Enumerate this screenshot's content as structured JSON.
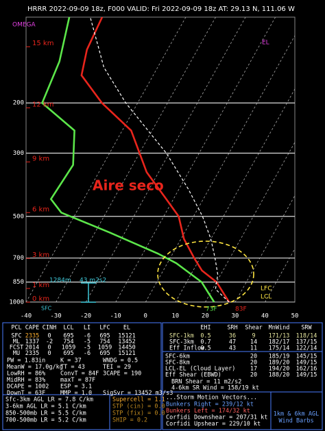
{
  "header": "HRRR 2022-09-09 18z, F000  VALID: Fri 2022-09-09 18z  AT: 29.13 N, 111.06 W",
  "chart_data": {
    "type": "skewt",
    "log_y": true,
    "ylim": [
      1000,
      100
    ],
    "yticks": [
      1000,
      850,
      700,
      500,
      300,
      200
    ],
    "y2ticks": [
      {
        "value": 127,
        "label": "15 km"
      },
      {
        "value": 208,
        "label": "12 km"
      },
      {
        "value": 322,
        "label": "9 km"
      },
      {
        "value": 485,
        "label": "6 km"
      },
      {
        "value": 702,
        "label": "3 km"
      },
      {
        "value": 895,
        "label": "1 km"
      },
      {
        "value": 1000,
        "label": "0 km"
      }
    ],
    "xlim": [
      -40,
      50
    ],
    "xticks": [
      -40,
      -30,
      -20,
      -10,
      0,
      10,
      20,
      30,
      40,
      50
    ],
    "grid": true,
    "series": [
      {
        "color": "#e8251c",
        "pressure": [
          1000,
          850,
          775,
          700,
          600,
          500,
          430,
          350,
          250,
          200,
          160,
          130,
          100
        ],
        "values": [
          28,
          20,
          13,
          8,
          1,
          -5,
          -13,
          -24,
          -37,
          -52,
          -64,
          -67,
          -68
        ]
      },
      {
        "color": "#5ce64a",
        "pressure": [
          1000,
          850,
          730,
          675,
          570,
          485,
          435,
          330,
          250,
          200,
          143,
          100
        ],
        "values": [
          23,
          15,
          3,
          -5,
          -25,
          -45,
          -51,
          -50,
          -56,
          -72,
          -74,
          -79
        ]
      },
      {
        "color": "#ffffff",
        "dashed": true,
        "pressure": [
          1000,
          900,
          800,
          700,
          600,
          500,
          400,
          300,
          200,
          150,
          100
        ],
        "values": [
          28,
          21,
          19,
          15,
          10,
          3,
          -7,
          -21,
          -44,
          -58,
          -72
        ]
      }
    ],
    "annotations": [
      "OMEGA",
      "Aire seco",
      "EL",
      "LFC",
      "LCL",
      "SFC",
      "1284m",
      "43 m2s2",
      "73F",
      "83F"
    ]
  },
  "panel": {
    "left_table": {
      "header": [
        "PCL",
        "CAPE",
        "CINH",
        "LCL",
        "LI",
        "LFC",
        "EL"
      ],
      "rows": [
        [
          "SFC",
          "2335",
          "0",
          "695",
          "-6",
          "695",
          "15121"
        ],
        [
          "ML",
          "1337",
          "-2",
          "754",
          "-5",
          "754",
          "13452"
        ],
        [
          "FCST",
          "2014",
          "0",
          "1059",
          "-5",
          "1059",
          "14450"
        ],
        [
          "MU",
          "2335",
          "0",
          "695",
          "-6",
          "695",
          "15121"
        ]
      ]
    },
    "indices": [
      [
        "PW = 1.83in",
        "K = 37",
        "WNDG = 0.5"
      ],
      [
        "MeanW = 17.0g/kg",
        "TT = 43",
        "TEI = 29"
      ],
      [
        "LowRH = 86%",
        "ConvT = 84F",
        "3CAPE = 190"
      ],
      [
        "MidRH = 83%",
        "maxT = 87F"
      ],
      [
        "DCAPE = 1002",
        "ESP = 3.1"
      ],
      [
        "DownT = 63F",
        "MMP = 1.0",
        "SigSvr = 13452 m3/s3"
      ]
    ],
    "lapse_rates": [
      "Sfc-3km AGL LR = 7.8 C/km",
      "3-6km AGL LR = 5.1 C/km",
      "850-500mb LR = 5.5 C/km",
      "700-500mb LR = 5.2 C/km"
    ],
    "composite": [
      "Supercell = 1.1",
      "STP (cin) = 0.0",
      "STP (fix) = 0.0",
      "SHIP = 0.2"
    ],
    "right_table": {
      "header": [
        "EHI",
        "SRH",
        "Shear",
        "MnWind",
        "SRW"
      ],
      "rows": [
        [
          "SFC-1km",
          "0.5",
          "36",
          "9",
          "171/13",
          "118/14"
        ],
        [
          "SFC-3km",
          "0.7",
          "47",
          "14",
          "182/17",
          "137/15"
        ],
        [
          "Eff Inflow",
          "0.5",
          "43",
          "11",
          "175/14",
          "122/14"
        ]
      ]
    },
    "shear_rows": [
      [
        "SFC-6km",
        "20",
        "185/19",
        "145/15"
      ],
      [
        "SFC-8km",
        "20",
        "189/20",
        "149/15"
      ],
      [
        "LCL-EL (Cloud Layer)",
        "17",
        "194/20",
        "162/16"
      ],
      [
        "Eff Shear (EBWD)",
        "20",
        "188/20",
        "149/15"
      ]
    ],
    "brn": [
      "BRN Shear = 11 m2/s2",
      "4-6km SR Wind = 158/19 kt"
    ],
    "storm_motion": {
      "title": "...Storm Motion Vectors...",
      "rows": [
        "Bunkers Right = 239/12 kt",
        "Bunkers Left = 174/32 kt",
        "Corfidi Downshear = 207/31 kt",
        "Corfidi Upshear = 229/10 kt"
      ]
    },
    "wind_barb_legend": [
      "1km & 6km AGL",
      "Wind Barbs"
    ]
  }
}
